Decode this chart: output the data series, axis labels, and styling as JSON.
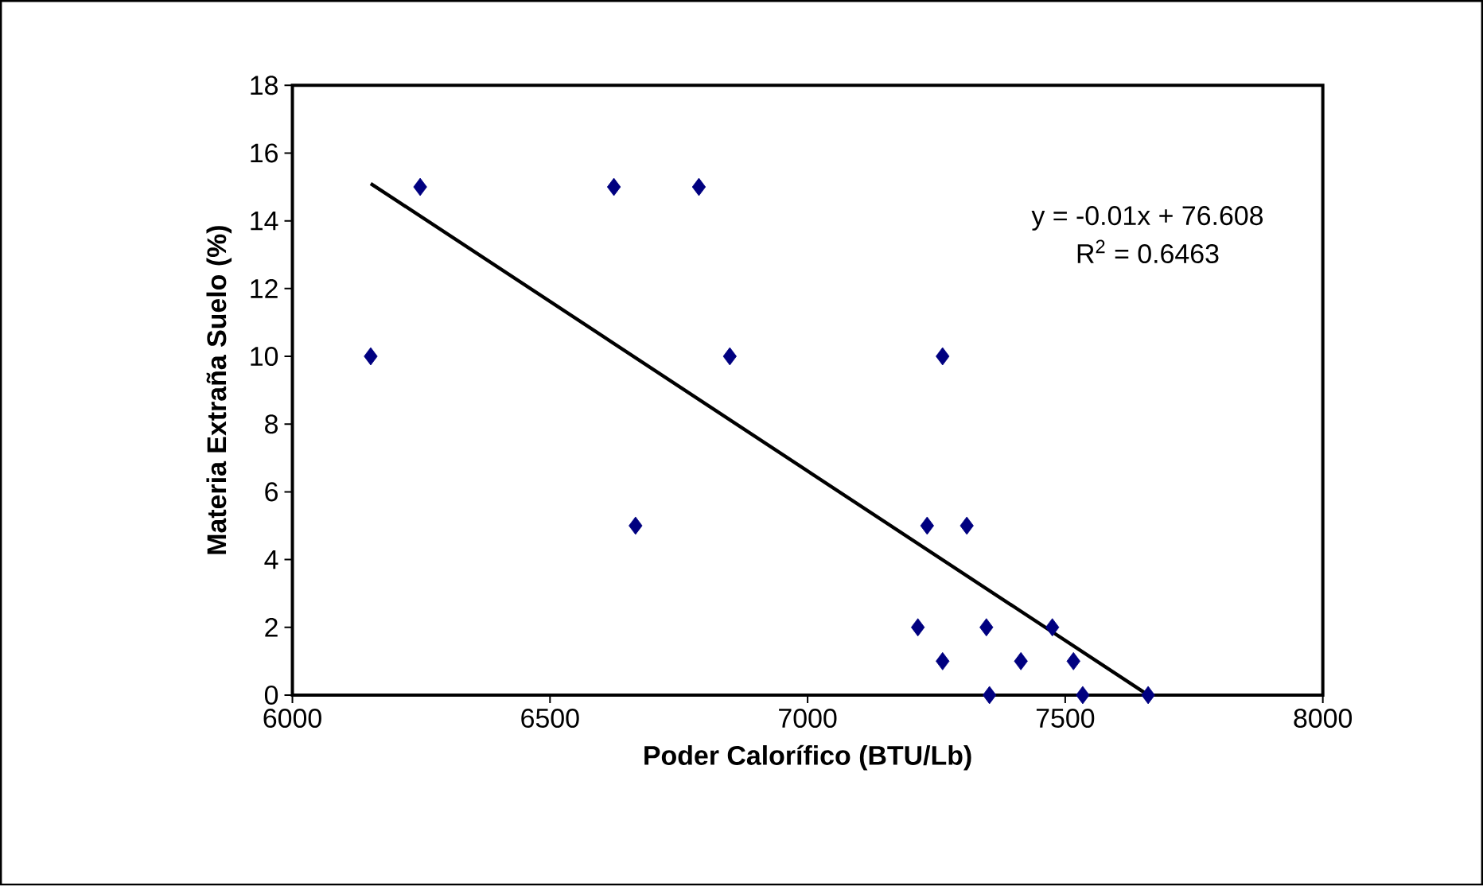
{
  "chart_data": {
    "type": "scatter",
    "xlabel": "Poder Calorífico (BTU/Lb)",
    "ylabel": "Materia Extraña Suelo (%)",
    "xlim": [
      6000,
      8000
    ],
    "xticks": [
      6000,
      6500,
      7000,
      7500,
      8000
    ],
    "ylim": [
      0,
      18
    ],
    "yticks": [
      0,
      2,
      4,
      6,
      8,
      10,
      12,
      14,
      16,
      18
    ],
    "grid": false,
    "legend": false,
    "marker": "diamond",
    "annotations": [
      "y = -0.01x + 76.608",
      "R$^{2}$ = 0.6463"
    ],
    "series": [
      {
        "color": "#000080",
        "x": [
          6152,
          6248,
          6624,
          6789,
          6849,
          6666,
          7262,
          7232,
          7309,
          7214,
          7347,
          7475,
          7262,
          7414,
          7516,
          7353,
          7534,
          7661
        ],
        "values": [
          10,
          15,
          15,
          15,
          10,
          5,
          10,
          5,
          5,
          2,
          2,
          2,
          1,
          1,
          1,
          0,
          0,
          0
        ]
      },
      {
        "type": "line",
        "marker": "none",
        "color": "#000000",
        "x": [
          6152,
          7661
        ],
        "values": [
          15.1,
          0
        ]
      }
    ]
  }
}
